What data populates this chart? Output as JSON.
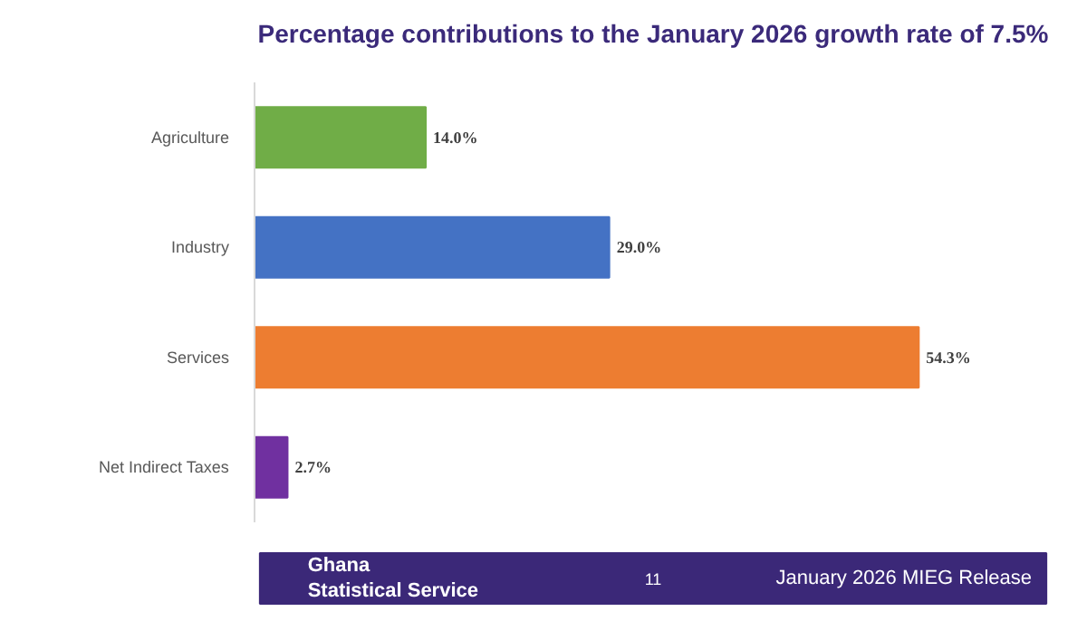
{
  "chart_data": {
    "type": "bar",
    "orientation": "horizontal",
    "title": "Percentage contributions to the January 2026 growth rate of 7.5%",
    "categories": [
      "Agriculture",
      "Industry",
      "Services",
      "Net Indirect Taxes"
    ],
    "values": [
      14.0,
      29.0,
      54.3,
      2.7
    ],
    "colors": [
      "#70ad47",
      "#4472c4",
      "#ed7d31",
      "#7030a0"
    ],
    "value_labels": [
      "14.0%",
      "29.0%",
      "54.3%",
      "2.7%"
    ],
    "annotations": [
      "Ghana\nStatistical Service",
      "11",
      "January 2026 MIEG Release"
    ],
    "grid": false
  }
}
